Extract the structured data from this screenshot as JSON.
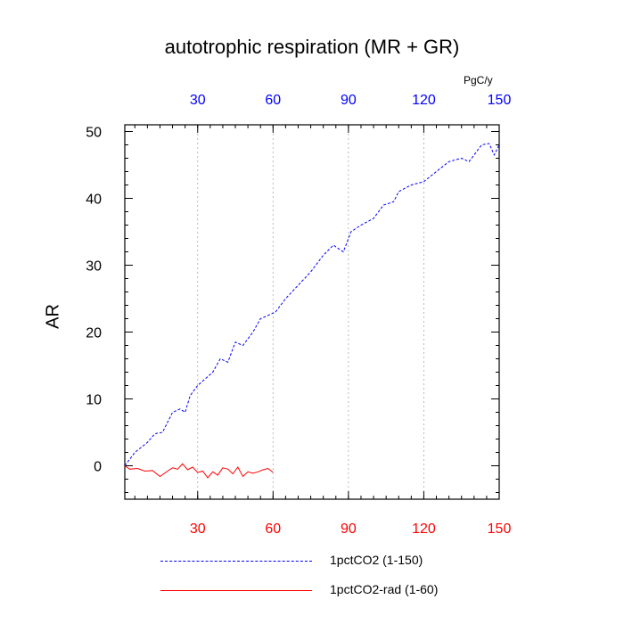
{
  "chart_data": {
    "type": "line",
    "title": "autotrophic respiration (MR + GR)",
    "ylabel": "AR",
    "top_axis_unit": "PgC/y",
    "xlim": [
      1,
      150
    ],
    "ylim": [
      -5,
      51
    ],
    "grid": "vertical dashed at 30, 60, 90, 120",
    "bottom_ticks": [
      "30",
      "60",
      "90",
      "120",
      "150"
    ],
    "top_ticks": [
      "30",
      "60",
      "90",
      "120",
      "150"
    ],
    "y_ticks": [
      "0",
      "10",
      "20",
      "30",
      "40",
      "50"
    ],
    "colors": {
      "bottom_ticks": "#ff0000",
      "top_ticks": "#0000ff",
      "series_1": "#0000ff",
      "series_2": "#ff0000"
    },
    "series": [
      {
        "name": "1pctCO2 (1-150)",
        "style": "dashed",
        "x": [
          1,
          5,
          10,
          13,
          16,
          20,
          23,
          25,
          27,
          30,
          33,
          36,
          39,
          42,
          45,
          48,
          52,
          55,
          58,
          61,
          65,
          70,
          75,
          80,
          84,
          86,
          88,
          91,
          95,
          100,
          104,
          108,
          110,
          115,
          120,
          125,
          130,
          135,
          138,
          140,
          143,
          146,
          148,
          150
        ],
        "values": [
          0,
          2.0,
          3.5,
          4.8,
          5.0,
          8.0,
          8.5,
          8.0,
          10.5,
          12.0,
          13.0,
          14.0,
          16.0,
          15.5,
          18.5,
          18.0,
          20.0,
          22.0,
          22.5,
          23.0,
          25.0,
          27.0,
          29.0,
          31.5,
          33.0,
          32.5,
          32.0,
          35.0,
          36.0,
          37.0,
          39.0,
          39.5,
          41.0,
          42.0,
          42.5,
          44.0,
          45.5,
          46.0,
          45.5,
          46.5,
          48.0,
          48.2,
          46.5,
          48.0
        ]
      },
      {
        "name": "1pctCO2-rad (1-60)",
        "style": "solid",
        "x": [
          1,
          3,
          6,
          9,
          12,
          15,
          18,
          20,
          22,
          24,
          26,
          28,
          30,
          32,
          34,
          36,
          38,
          40,
          42,
          44,
          46,
          48,
          50,
          52,
          54,
          56,
          58,
          60
        ],
        "values": [
          0,
          -0.5,
          -0.4,
          -0.8,
          -0.7,
          -1.6,
          -0.8,
          -0.3,
          -0.5,
          0.3,
          -0.6,
          -0.2,
          -1.0,
          -0.8,
          -1.8,
          -0.9,
          -1.4,
          -0.3,
          -0.5,
          -1.2,
          -0.2,
          -1.6,
          -0.9,
          -1.1,
          -0.9,
          -0.6,
          -0.4,
          -1.0
        ]
      }
    ]
  }
}
